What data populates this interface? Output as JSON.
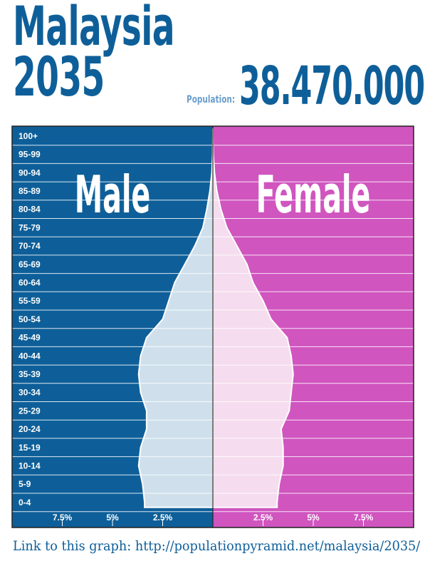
{
  "header": {
    "country": "Malaysia",
    "year": "2035",
    "population_label": "Population:",
    "population_value": "38.470.000"
  },
  "footer": {
    "link_text": "Link to this graph: http://populationpyramid.net/malaysia/2035/"
  },
  "colors": {
    "male_bg": "#0e5f99",
    "female_bg": "#d055bf",
    "male_fill": "#cfe0ec",
    "female_fill": "#f5dcee",
    "title": "#0e5f99"
  },
  "chart_data": {
    "type": "population_pyramid",
    "male_label": "Male",
    "female_label": "Female",
    "age_groups": [
      "0-4",
      "5-9",
      "10-14",
      "15-19",
      "20-24",
      "25-29",
      "30-34",
      "35-39",
      "40-44",
      "45-49",
      "50-54",
      "55-59",
      "60-64",
      "65-69",
      "70-74",
      "75-79",
      "80-84",
      "85-89",
      "90-94",
      "95-99",
      "100+"
    ],
    "male": [
      3.4,
      3.5,
      3.7,
      3.6,
      3.3,
      3.3,
      3.6,
      3.7,
      3.6,
      3.3,
      2.5,
      2.2,
      1.9,
      1.4,
      0.9,
      0.5,
      0.3,
      0.15,
      0.05,
      0.01,
      0.0
    ],
    "female": [
      3.2,
      3.3,
      3.5,
      3.5,
      3.4,
      3.8,
      3.9,
      4.0,
      3.9,
      3.7,
      2.9,
      2.5,
      2.0,
      1.7,
      1.2,
      0.7,
      0.4,
      0.2,
      0.08,
      0.02,
      0.0
    ],
    "x_ticks": {
      "male": [
        {
          "value": 7.5,
          "label": "7.5%"
        },
        {
          "value": 5,
          "label": "5%"
        },
        {
          "value": 2.5,
          "label": "2.5%"
        }
      ],
      "female": [
        {
          "value": 2.5,
          "label": "2.5%"
        },
        {
          "value": 5,
          "label": "5%"
        },
        {
          "value": 7.5,
          "label": "7.5%"
        }
      ]
    },
    "x_max": 10
  }
}
